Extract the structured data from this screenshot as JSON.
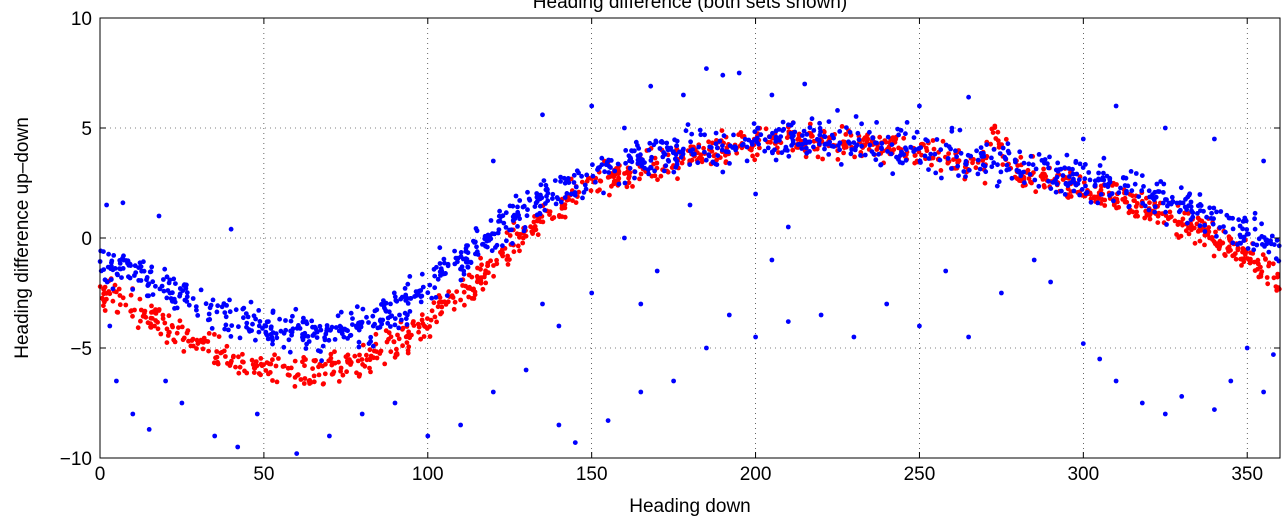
{
  "chart_data": {
    "type": "scatter",
    "title": "Heading difference (both sets shown)",
    "title_note": "title partially cropped at the top of the screenshot; only the lower part of the glyphs is visible",
    "xlabel": "Heading down",
    "ylabel": "Heading difference up–down",
    "xlim": [
      0,
      360
    ],
    "ylim": [
      -10,
      10
    ],
    "xticks": [
      0,
      50,
      100,
      150,
      200,
      250,
      300,
      350
    ],
    "yticks": [
      -10,
      -5,
      0,
      5,
      10
    ],
    "ytick_labels": [
      "−10",
      "−5",
      "0",
      "5",
      "10"
    ],
    "grid": true,
    "grid_style": "dotted",
    "legend": "none",
    "series": [
      {
        "color": "#ff0000",
        "marker": "dot",
        "description_of_trend": "tight sinusoidal band",
        "x": [
          0,
          10,
          20,
          30,
          40,
          50,
          60,
          70,
          80,
          90,
          100,
          110,
          120,
          130,
          140,
          150,
          160,
          170,
          180,
          190,
          200,
          210,
          220,
          230,
          240,
          250,
          260,
          270,
          272,
          280,
          290,
          300,
          310,
          320,
          330,
          340,
          350,
          360
        ],
        "values": [
          -2.4,
          -3.2,
          -3.9,
          -4.8,
          -5.5,
          -6.0,
          -6.2,
          -6.0,
          -5.6,
          -4.8,
          -3.8,
          -2.6,
          -1.2,
          0.3,
          1.4,
          2.4,
          2.9,
          3.3,
          3.7,
          4.0,
          4.3,
          4.5,
          4.4,
          4.3,
          4.1,
          3.9,
          3.6,
          3.4,
          5.0,
          3.0,
          2.7,
          2.3,
          1.9,
          1.4,
          0.8,
          0.1,
          -0.9,
          -2.0
        ],
        "spread": 0.8
      },
      {
        "color": "#0000ff",
        "marker": "dot",
        "description_of_trend": "sinusoidal band with heavy scatter and outliers",
        "x": [
          0,
          10,
          20,
          30,
          40,
          50,
          60,
          70,
          80,
          90,
          100,
          110,
          120,
          130,
          140,
          150,
          160,
          170,
          180,
          190,
          200,
          210,
          220,
          230,
          240,
          250,
          260,
          270,
          280,
          290,
          300,
          310,
          320,
          330,
          340,
          350,
          360
        ],
        "values": [
          -1.0,
          -1.6,
          -2.3,
          -3.0,
          -3.6,
          -4.1,
          -4.4,
          -4.4,
          -4.0,
          -3.2,
          -2.2,
          -1.0,
          0.3,
          1.4,
          2.3,
          2.9,
          3.3,
          3.6,
          3.9,
          4.2,
          4.5,
          4.6,
          4.5,
          4.3,
          4.1,
          3.9,
          3.7,
          3.5,
          3.3,
          3.0,
          2.7,
          2.4,
          2.0,
          1.5,
          0.9,
          0.3,
          -0.6
        ],
        "spread": 1.0,
        "outliers": [
          {
            "x": 2,
            "y": 1.5
          },
          {
            "x": 7,
            "y": 1.6
          },
          {
            "x": 18,
            "y": 1.0
          },
          {
            "x": 40,
            "y": 0.4
          },
          {
            "x": 3,
            "y": -4.0
          },
          {
            "x": 5,
            "y": -6.5
          },
          {
            "x": 10,
            "y": -8.0
          },
          {
            "x": 15,
            "y": -8.7
          },
          {
            "x": 20,
            "y": -6.5
          },
          {
            "x": 25,
            "y": -7.5
          },
          {
            "x": 35,
            "y": -9.0
          },
          {
            "x": 42,
            "y": -9.5
          },
          {
            "x": 48,
            "y": -8.0
          },
          {
            "x": 60,
            "y": -9.8
          },
          {
            "x": 70,
            "y": -9.0
          },
          {
            "x": 80,
            "y": -8.0
          },
          {
            "x": 90,
            "y": -7.5
          },
          {
            "x": 100,
            "y": -9.0
          },
          {
            "x": 110,
            "y": -8.5
          },
          {
            "x": 120,
            "y": -7.0
          },
          {
            "x": 130,
            "y": -6.0
          },
          {
            "x": 140,
            "y": -8.5
          },
          {
            "x": 145,
            "y": -9.3
          },
          {
            "x": 155,
            "y": -8.3
          },
          {
            "x": 165,
            "y": -7.0
          },
          {
            "x": 175,
            "y": -6.5
          },
          {
            "x": 185,
            "y": -5.0
          },
          {
            "x": 192,
            "y": -3.5
          },
          {
            "x": 200,
            "y": -4.5
          },
          {
            "x": 210,
            "y": -3.8
          },
          {
            "x": 220,
            "y": -3.5
          },
          {
            "x": 230,
            "y": -4.5
          },
          {
            "x": 240,
            "y": -3.0
          },
          {
            "x": 250,
            "y": -4.0
          },
          {
            "x": 258,
            "y": -1.5
          },
          {
            "x": 265,
            "y": -4.5
          },
          {
            "x": 275,
            "y": -2.5
          },
          {
            "x": 285,
            "y": -1.0
          },
          {
            "x": 290,
            "y": -2.0
          },
          {
            "x": 300,
            "y": -4.8
          },
          {
            "x": 305,
            "y": -5.5
          },
          {
            "x": 310,
            "y": -6.5
          },
          {
            "x": 318,
            "y": -7.5
          },
          {
            "x": 325,
            "y": -8.0
          },
          {
            "x": 330,
            "y": -7.2
          },
          {
            "x": 340,
            "y": -7.8
          },
          {
            "x": 345,
            "y": -6.5
          },
          {
            "x": 350,
            "y": -5.0
          },
          {
            "x": 355,
            "y": -7.0
          },
          {
            "x": 358,
            "y": -5.3
          },
          {
            "x": 120,
            "y": 3.5
          },
          {
            "x": 135,
            "y": 5.6
          },
          {
            "x": 150,
            "y": 6.0
          },
          {
            "x": 160,
            "y": 5.0
          },
          {
            "x": 168,
            "y": 6.9
          },
          {
            "x": 178,
            "y": 6.5
          },
          {
            "x": 185,
            "y": 7.7
          },
          {
            "x": 190,
            "y": 7.4
          },
          {
            "x": 195,
            "y": 7.5
          },
          {
            "x": 205,
            "y": 6.5
          },
          {
            "x": 215,
            "y": 7.0
          },
          {
            "x": 225,
            "y": 5.8
          },
          {
            "x": 250,
            "y": 6.0
          },
          {
            "x": 265,
            "y": 6.4
          },
          {
            "x": 300,
            "y": 4.5
          },
          {
            "x": 310,
            "y": 6.0
          },
          {
            "x": 325,
            "y": 5.0
          },
          {
            "x": 340,
            "y": 4.5
          },
          {
            "x": 355,
            "y": 3.5
          },
          {
            "x": 190,
            "y": 3.0
          },
          {
            "x": 200,
            "y": 2.0
          },
          {
            "x": 210,
            "y": 0.5
          },
          {
            "x": 205,
            "y": -1.0
          },
          {
            "x": 180,
            "y": 1.5
          },
          {
            "x": 170,
            "y": -1.5
          },
          {
            "x": 165,
            "y": -3.0
          },
          {
            "x": 160,
            "y": 0.0
          },
          {
            "x": 150,
            "y": -2.5
          },
          {
            "x": 140,
            "y": -4.0
          },
          {
            "x": 135,
            "y": -3.0
          }
        ]
      }
    ]
  }
}
